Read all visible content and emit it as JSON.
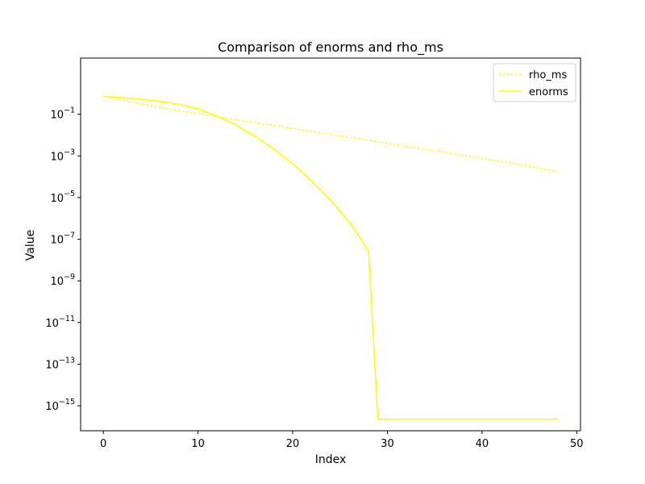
{
  "chart_data": {
    "type": "line",
    "title": "Comparison of enorms and rho_ms",
    "xlabel": "Index",
    "ylabel": "Value",
    "xlim": [
      -2.4,
      50.4
    ],
    "ylim_log10": [
      -16.2,
      1.7
    ],
    "yscale": "log",
    "x_ticks": [
      0,
      10,
      20,
      30,
      40,
      50
    ],
    "y_ticks": [
      {
        "base": "10",
        "exp": "−1",
        "log10": -1
      },
      {
        "base": "10",
        "exp": "−3",
        "log10": -3
      },
      {
        "base": "10",
        "exp": "−5",
        "log10": -5
      },
      {
        "base": "10",
        "exp": "−7",
        "log10": -7
      },
      {
        "base": "10",
        "exp": "−9",
        "log10": -9
      },
      {
        "base": "10",
        "exp": "−11",
        "log10": -11
      },
      {
        "base": "10",
        "exp": "−13",
        "log10": -13
      },
      {
        "base": "10",
        "exp": "−15",
        "log10": -15
      }
    ],
    "grid": false,
    "legend_position": "top-right",
    "series": [
      {
        "name": "rho_ms",
        "color": "#ffff00",
        "style": "dotted",
        "x": [
          0,
          4,
          8,
          12,
          16,
          20,
          24,
          28,
          32,
          36,
          40,
          44,
          48
        ],
        "y_log10": [
          -0.13,
          -0.5,
          -0.82,
          -1.12,
          -1.4,
          -1.68,
          -1.97,
          -2.25,
          -2.54,
          -2.82,
          -3.12,
          -3.42,
          -3.75
        ]
      },
      {
        "name": "enorms",
        "color": "#ffff00",
        "style": "solid",
        "x": [
          0,
          2,
          4,
          6,
          8,
          10,
          12,
          14,
          16,
          18,
          20,
          22,
          24,
          26,
          27,
          28,
          29,
          30,
          35,
          40,
          45,
          48
        ],
        "y_log10": [
          -0.13,
          -0.2,
          -0.28,
          -0.38,
          -0.52,
          -0.74,
          -1.08,
          -1.52,
          -2.05,
          -2.67,
          -3.38,
          -4.2,
          -5.12,
          -6.2,
          -6.85,
          -7.58,
          -15.65,
          -15.65,
          -15.65,
          -15.65,
          -15.65,
          -15.65
        ]
      }
    ]
  }
}
